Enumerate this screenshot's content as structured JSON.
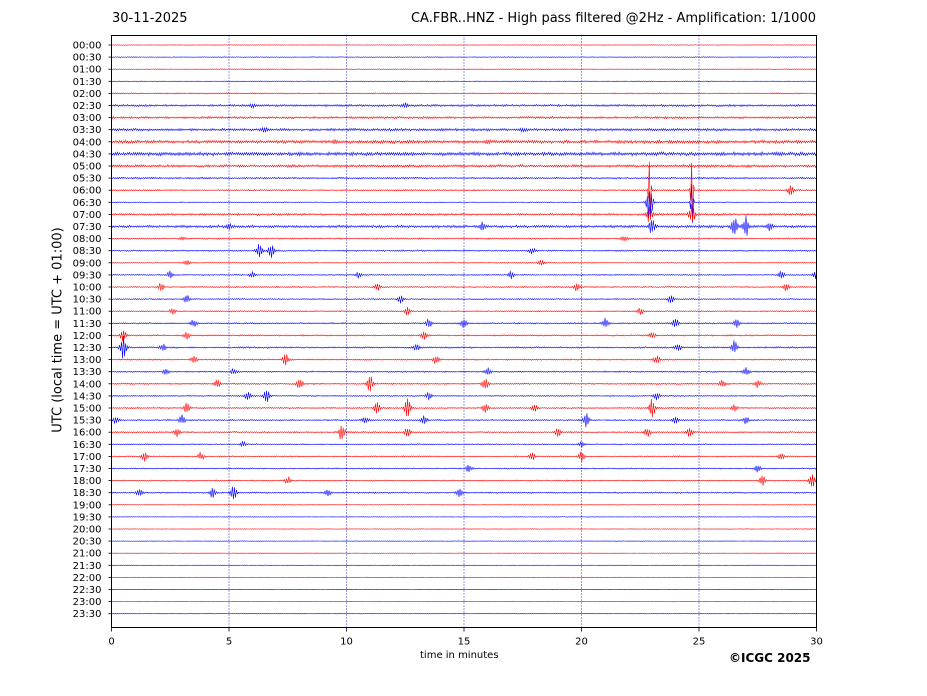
{
  "header": {
    "date": "30-11-2025",
    "title": "CA.FBR..HNZ - High pass filtered @2Hz - Amplification: 1/1000"
  },
  "footer": {
    "copyright": "©ICGC 2025"
  },
  "chart_data": {
    "type": "line",
    "title": "CA.FBR..HNZ - High pass filtered @2Hz - Amplification: 1/1000",
    "xlabel": "time in minutes",
    "ylabel": "UTC (local time = UTC + 01:00)",
    "xlim": [
      0,
      30
    ],
    "x_ticks": [
      0,
      5,
      10,
      15,
      20,
      25,
      30
    ],
    "x_gridlines": [
      5,
      10,
      15,
      20,
      25
    ],
    "grid": "vertical dotted",
    "colors": {
      "even_row": "#ff0000",
      "odd_row": "#0000ff",
      "grid": "#0000aa"
    },
    "rows": [
      "00:00",
      "00:30",
      "01:00",
      "01:30",
      "02:00",
      "02:30",
      "03:00",
      "03:30",
      "04:00",
      "04:30",
      "05:00",
      "05:30",
      "06:00",
      "06:30",
      "07:00",
      "07:30",
      "08:00",
      "08:30",
      "09:00",
      "09:30",
      "10:00",
      "10:30",
      "11:00",
      "11:30",
      "12:00",
      "12:30",
      "13:00",
      "13:30",
      "14:00",
      "14:30",
      "15:00",
      "15:30",
      "16:00",
      "16:30",
      "17:00",
      "17:30",
      "18:00",
      "18:30",
      "19:00",
      "19:30",
      "20:00",
      "20:30",
      "21:00",
      "21:30",
      "22:00",
      "22:30",
      "23:00",
      "23:30"
    ],
    "noise_level": [
      0.3,
      0.4,
      0.4,
      0.4,
      0.7,
      1.2,
      1.2,
      1.5,
      1.8,
      2.0,
      1.5,
      1.0,
      0.8,
      0.5,
      1.2,
      1.5,
      0.8,
      0.8,
      0.5,
      0.7,
      0.7,
      0.7,
      0.7,
      0.8,
      0.8,
      0.9,
      0.8,
      0.8,
      0.8,
      0.7,
      0.8,
      0.8,
      0.8,
      0.7,
      0.7,
      0.7,
      0.7,
      0.8,
      0.3,
      0.3,
      0.3,
      0.3,
      0.3,
      0.3,
      0.3,
      0.3,
      0.3,
      0.3
    ],
    "events": [
      {
        "row": 5,
        "t": 6.0,
        "amp": 2
      },
      {
        "row": 5,
        "t": 12.5,
        "amp": 2
      },
      {
        "row": 7,
        "t": 6.5,
        "amp": 2
      },
      {
        "row": 7,
        "t": 17.5,
        "amp": 2
      },
      {
        "row": 8,
        "t": 9.5,
        "amp": 2
      },
      {
        "row": 8,
        "t": 16.0,
        "amp": 2
      },
      {
        "row": 12,
        "t": 22.9,
        "amp": 45
      },
      {
        "row": 12,
        "t": 24.7,
        "amp": 45
      },
      {
        "row": 12,
        "t": 28.9,
        "amp": 5
      },
      {
        "row": 13,
        "t": 22.9,
        "amp": 20
      },
      {
        "row": 13,
        "t": 24.7,
        "amp": 30
      },
      {
        "row": 14,
        "t": 22.9,
        "amp": 10
      },
      {
        "row": 14,
        "t": 24.7,
        "amp": 10
      },
      {
        "row": 15,
        "t": 5.0,
        "amp": 3
      },
      {
        "row": 15,
        "t": 15.8,
        "amp": 4
      },
      {
        "row": 15,
        "t": 23.0,
        "amp": 8
      },
      {
        "row": 15,
        "t": 26.5,
        "amp": 10
      },
      {
        "row": 15,
        "t": 27.0,
        "amp": 10
      },
      {
        "row": 15,
        "t": 28.0,
        "amp": 4
      },
      {
        "row": 16,
        "t": 3.0,
        "amp": 2
      },
      {
        "row": 16,
        "t": 21.8,
        "amp": 3
      },
      {
        "row": 17,
        "t": 6.3,
        "amp": 8
      },
      {
        "row": 17,
        "t": 6.8,
        "amp": 7
      },
      {
        "row": 17,
        "t": 17.9,
        "amp": 3
      },
      {
        "row": 18,
        "t": 3.2,
        "amp": 3
      },
      {
        "row": 18,
        "t": 18.3,
        "amp": 3
      },
      {
        "row": 19,
        "t": 2.5,
        "amp": 4
      },
      {
        "row": 19,
        "t": 6.0,
        "amp": 3
      },
      {
        "row": 19,
        "t": 10.5,
        "amp": 3
      },
      {
        "row": 19,
        "t": 17.0,
        "amp": 4
      },
      {
        "row": 19,
        "t": 28.5,
        "amp": 4
      },
      {
        "row": 19,
        "t": 30.0,
        "amp": 7
      },
      {
        "row": 20,
        "t": 2.1,
        "amp": 4
      },
      {
        "row": 20,
        "t": 11.3,
        "amp": 4
      },
      {
        "row": 20,
        "t": 19.8,
        "amp": 4
      },
      {
        "row": 20,
        "t": 28.7,
        "amp": 4
      },
      {
        "row": 21,
        "t": 3.2,
        "amp": 4
      },
      {
        "row": 21,
        "t": 12.3,
        "amp": 4
      },
      {
        "row": 21,
        "t": 23.8,
        "amp": 4
      },
      {
        "row": 22,
        "t": 2.6,
        "amp": 3
      },
      {
        "row": 22,
        "t": 12.6,
        "amp": 4
      },
      {
        "row": 22,
        "t": 22.5,
        "amp": 4
      },
      {
        "row": 23,
        "t": 3.5,
        "amp": 4
      },
      {
        "row": 23,
        "t": 13.5,
        "amp": 5
      },
      {
        "row": 23,
        "t": 15.0,
        "amp": 5
      },
      {
        "row": 23,
        "t": 21.0,
        "amp": 5
      },
      {
        "row": 23,
        "t": 24.0,
        "amp": 5
      },
      {
        "row": 23,
        "t": 26.6,
        "amp": 4
      },
      {
        "row": 24,
        "t": 0.5,
        "amp": 6
      },
      {
        "row": 24,
        "t": 3.2,
        "amp": 4
      },
      {
        "row": 24,
        "t": 13.3,
        "amp": 4
      },
      {
        "row": 24,
        "t": 23.0,
        "amp": 4
      },
      {
        "row": 25,
        "t": 0.5,
        "amp": 14
      },
      {
        "row": 25,
        "t": 2.2,
        "amp": 4
      },
      {
        "row": 25,
        "t": 13.0,
        "amp": 4
      },
      {
        "row": 25,
        "t": 24.1,
        "amp": 4
      },
      {
        "row": 25,
        "t": 26.5,
        "amp": 7
      },
      {
        "row": 26,
        "t": 3.5,
        "amp": 4
      },
      {
        "row": 26,
        "t": 7.4,
        "amp": 6
      },
      {
        "row": 26,
        "t": 13.8,
        "amp": 4
      },
      {
        "row": 26,
        "t": 23.2,
        "amp": 4
      },
      {
        "row": 27,
        "t": 2.3,
        "amp": 4
      },
      {
        "row": 27,
        "t": 5.2,
        "amp": 3
      },
      {
        "row": 27,
        "t": 16.0,
        "amp": 4
      },
      {
        "row": 27,
        "t": 27.0,
        "amp": 4
      },
      {
        "row": 28,
        "t": 4.5,
        "amp": 4
      },
      {
        "row": 28,
        "t": 8.0,
        "amp": 5
      },
      {
        "row": 28,
        "t": 11.0,
        "amp": 9
      },
      {
        "row": 28,
        "t": 15.9,
        "amp": 6
      },
      {
        "row": 28,
        "t": 26.0,
        "amp": 4
      },
      {
        "row": 28,
        "t": 27.5,
        "amp": 4
      },
      {
        "row": 29,
        "t": 5.8,
        "amp": 5
      },
      {
        "row": 29,
        "t": 6.6,
        "amp": 7
      },
      {
        "row": 29,
        "t": 13.5,
        "amp": 4
      },
      {
        "row": 29,
        "t": 23.2,
        "amp": 4
      },
      {
        "row": 30,
        "t": 3.2,
        "amp": 5
      },
      {
        "row": 30,
        "t": 11.3,
        "amp": 7
      },
      {
        "row": 30,
        "t": 12.6,
        "amp": 10
      },
      {
        "row": 30,
        "t": 15.9,
        "amp": 5
      },
      {
        "row": 30,
        "t": 18.0,
        "amp": 4
      },
      {
        "row": 30,
        "t": 23.0,
        "amp": 10
      },
      {
        "row": 30,
        "t": 26.5,
        "amp": 4
      },
      {
        "row": 31,
        "t": 0.2,
        "amp": 4
      },
      {
        "row": 31,
        "t": 3.0,
        "amp": 5
      },
      {
        "row": 31,
        "t": 10.8,
        "amp": 4
      },
      {
        "row": 31,
        "t": 13.3,
        "amp": 5
      },
      {
        "row": 31,
        "t": 20.2,
        "amp": 7
      },
      {
        "row": 31,
        "t": 24.0,
        "amp": 4
      },
      {
        "row": 31,
        "t": 27.0,
        "amp": 4
      },
      {
        "row": 32,
        "t": 2.8,
        "amp": 5
      },
      {
        "row": 32,
        "t": 9.8,
        "amp": 10
      },
      {
        "row": 32,
        "t": 12.6,
        "amp": 5
      },
      {
        "row": 32,
        "t": 19.0,
        "amp": 5
      },
      {
        "row": 32,
        "t": 22.8,
        "amp": 5
      },
      {
        "row": 32,
        "t": 24.6,
        "amp": 5
      },
      {
        "row": 33,
        "t": 5.6,
        "amp": 3
      },
      {
        "row": 33,
        "t": 20.0,
        "amp": 3
      },
      {
        "row": 34,
        "t": 1.4,
        "amp": 5
      },
      {
        "row": 34,
        "t": 3.8,
        "amp": 4
      },
      {
        "row": 34,
        "t": 17.9,
        "amp": 4
      },
      {
        "row": 34,
        "t": 20.0,
        "amp": 5
      },
      {
        "row": 34,
        "t": 28.5,
        "amp": 4
      },
      {
        "row": 35,
        "t": 15.2,
        "amp": 4
      },
      {
        "row": 35,
        "t": 27.5,
        "amp": 4
      },
      {
        "row": 36,
        "t": 7.5,
        "amp": 4
      },
      {
        "row": 36,
        "t": 27.7,
        "amp": 6
      },
      {
        "row": 36,
        "t": 29.8,
        "amp": 9
      },
      {
        "row": 37,
        "t": 1.2,
        "amp": 5
      },
      {
        "row": 37,
        "t": 4.3,
        "amp": 5
      },
      {
        "row": 37,
        "t": 5.2,
        "amp": 7
      },
      {
        "row": 37,
        "t": 9.2,
        "amp": 4
      },
      {
        "row": 37,
        "t": 14.8,
        "amp": 4
      }
    ]
  }
}
